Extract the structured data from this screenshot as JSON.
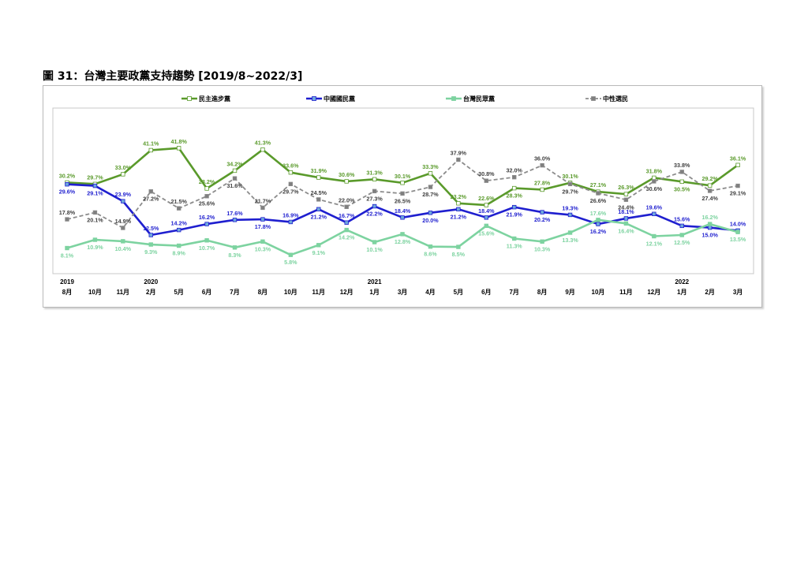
{
  "figure": {
    "title": "圖 31：台灣主要政黨支持趨勢  [2019/8~2022/3]"
  },
  "chart_data": {
    "type": "line",
    "years": [
      {
        "index": 0,
        "label": "2019"
      },
      {
        "index": 3,
        "label": "2020"
      },
      {
        "index": 11,
        "label": "2021"
      },
      {
        "index": 22,
        "label": "2022"
      }
    ],
    "categories": [
      "8月",
      "10月",
      "11月",
      "2月",
      "5月",
      "6月",
      "7月",
      "8月",
      "10月",
      "11月",
      "12月",
      "1月",
      "3月",
      "4月",
      "5月",
      "6月",
      "7月",
      "8月",
      "9月",
      "10月",
      "11月",
      "12月",
      "1月",
      "2月",
      "3月"
    ],
    "ylim": [
      0,
      50
    ],
    "grid": false,
    "legend_position": "top",
    "series": [
      {
        "name": "民主進步黨",
        "color": "#5a9a2b",
        "marker_fill": "#ffffff",
        "dashed": false,
        "values": [
          30.2,
          29.7,
          33.0,
          41.1,
          41.8,
          28.2,
          34.2,
          41.3,
          33.6,
          31.9,
          30.6,
          31.3,
          30.1,
          33.3,
          23.2,
          22.6,
          28.3,
          27.8,
          30.1,
          27.1,
          26.3,
          31.8,
          30.5,
          29.2,
          36.1
        ],
        "labels": [
          "30.2%",
          "29.7%",
          "33.0%",
          "41.1%",
          "41.8%",
          "28.2%",
          "34.2%",
          "41.3%",
          "33.6%",
          "31.9%",
          "30.6%",
          "31.3%",
          "30.1%",
          "33.3%",
          "23.2%",
          "22.6%",
          "28.3%",
          "27.8%",
          "30.1%",
          "27.1%",
          "26.3%",
          "31.8%",
          "30.5%",
          "29.2%",
          "36.1%"
        ]
      },
      {
        "name": "中國國民黨",
        "color": "#1f1fcf",
        "marker_fill": "#6fa8dc",
        "dashed": false,
        "values": [
          29.6,
          29.1,
          23.9,
          12.5,
          14.2,
          16.2,
          17.6,
          17.8,
          16.9,
          21.2,
          16.7,
          22.2,
          18.4,
          20.0,
          21.2,
          18.4,
          21.9,
          20.2,
          19.3,
          16.2,
          18.1,
          19.6,
          15.6,
          15.0,
          14.0
        ],
        "labels": [
          "29.6%",
          "29.1%",
          "23.9%",
          "12.5%",
          "14.2%",
          "16.2%",
          "17.6%",
          "17.8%",
          "16.9%",
          "21.2%",
          "16.7%",
          "22.2%",
          "18.4%",
          "20.0%",
          "21.2%",
          "18.4%",
          "21.9%",
          "20.2%",
          "19.3%",
          "16.2%",
          "18.1%",
          "19.6%",
          "15.6%",
          "15.0%",
          "14.0%"
        ]
      },
      {
        "name": "台灣民眾黨",
        "color": "#7dd3a0",
        "marker_fill": "#7dd3a0",
        "dashed": false,
        "values": [
          8.1,
          10.9,
          10.4,
          9.3,
          8.9,
          10.7,
          8.3,
          10.3,
          5.8,
          9.1,
          14.2,
          10.1,
          12.8,
          8.6,
          8.5,
          15.6,
          11.3,
          10.3,
          13.3,
          17.6,
          16.4,
          12.1,
          12.5,
          16.2,
          13.5
        ],
        "labels": [
          "8.1%",
          "10.9%",
          "10.4%",
          "9.3%",
          "8.9%",
          "10.7%",
          "8.3%",
          "10.3%",
          "5.8%",
          "9.1%",
          "14.2%",
          "10.1%",
          "12.8%",
          "8.6%",
          "8.5%",
          "15.6%",
          "11.3%",
          "10.3%",
          "13.3%",
          "17.6%",
          "16.4%",
          "12.1%",
          "12.5%",
          "16.2%",
          "13.5%"
        ]
      },
      {
        "name": "中性選民",
        "color": "#8c8c8c",
        "marker_fill": "#7f7f7f",
        "dashed": true,
        "values": [
          17.8,
          20.1,
          14.9,
          27.2,
          21.5,
          25.6,
          31.6,
          21.7,
          29.7,
          24.5,
          22.0,
          27.3,
          26.5,
          28.7,
          37.9,
          30.8,
          32.0,
          36.0,
          29.7,
          26.6,
          24.4,
          30.6,
          33.8,
          27.4,
          29.1
        ],
        "labels": [
          "17.8%",
          "20.1%",
          "14.9%",
          "27.2%",
          "21.5%",
          "25.6%",
          "31.6%",
          "21.7%",
          "29.7%",
          "24.5%",
          "22.0%",
          "27.3%",
          "26.5%",
          "28.7%",
          "37.9%",
          "30.8%",
          "32.0%",
          "36.0%",
          "29.7%",
          "26.6%",
          "24.4%",
          "30.6%",
          "33.8%",
          "27.4%",
          "29.1%"
        ]
      }
    ]
  }
}
